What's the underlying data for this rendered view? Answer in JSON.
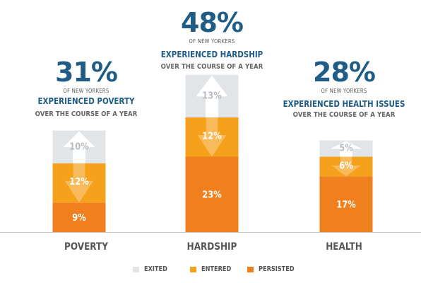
{
  "chart_data": {
    "type": "bar",
    "stacked": true,
    "categories": [
      "POVERTY",
      "HARDSHIP",
      "HEALTH"
    ],
    "series": [
      {
        "name": "PERSISTED",
        "values": [
          9,
          23,
          17
        ],
        "labels": [
          "9%",
          "23%",
          "17%"
        ]
      },
      {
        "name": "ENTERED",
        "values": [
          12,
          12,
          6
        ],
        "labels": [
          "12%",
          "12%",
          "6%"
        ]
      },
      {
        "name": "EXITED",
        "values": [
          10,
          13,
          5
        ],
        "labels": [
          "10%",
          "13%",
          "5%"
        ]
      }
    ],
    "colors": {
      "PERSISTED": "#f07f1d",
      "ENTERED": "#f5a11c",
      "EXITED": "#e1e5e8"
    },
    "legend_position": "bottom"
  },
  "headlines": [
    {
      "percent": "31%",
      "sub": "OF NEW YORKERS",
      "label": "EXPERIENCED POVERTY",
      "desc": "OVER THE COURSE OF A YEAR"
    },
    {
      "percent": "48%",
      "sub": "OF NEW YORKERS",
      "label": "EXPERIENCED HARDSHIP",
      "desc": "OVER THE COURSE OF A YEAR"
    },
    {
      "percent": "28%",
      "sub": "OF NEW YORKERS",
      "label": "EXPERIENCED HEALTH ISSUES",
      "desc": "OVER THE COURSE OF A YEAR"
    }
  ],
  "legend": [
    {
      "name": "EXITED",
      "color": "#e1e5e8"
    },
    {
      "name": "ENTERED",
      "color": "#f5a11c"
    },
    {
      "name": "PERSISTED",
      "color": "#f07f1d"
    }
  ]
}
